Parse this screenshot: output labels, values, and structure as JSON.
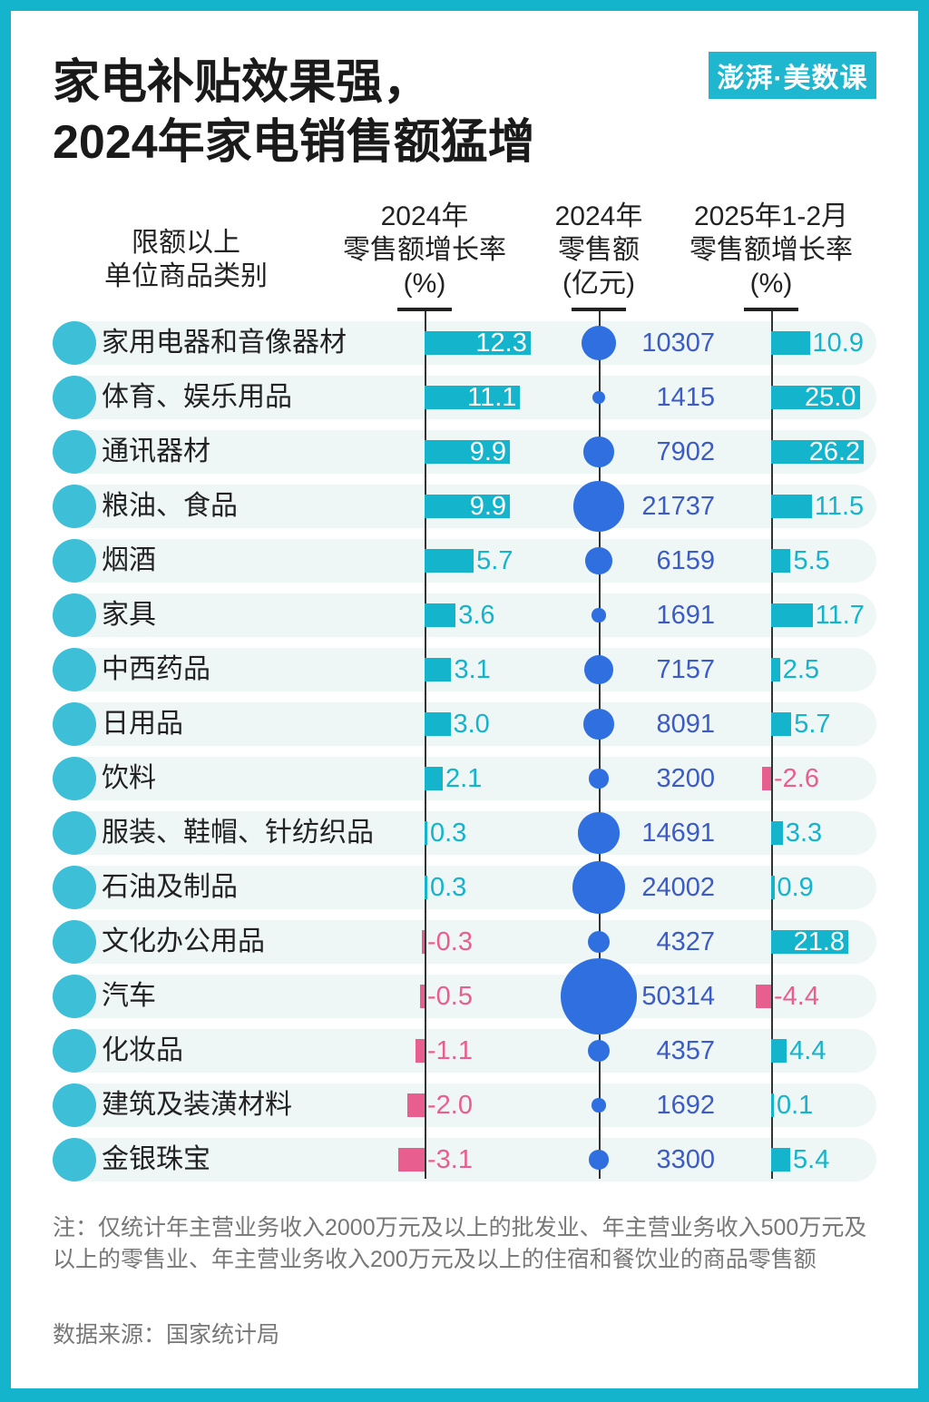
{
  "title_line1": "家电补贴效果强，",
  "title_line2": "2024年家电销售额猛增",
  "logo_text": "澎湃·美数课",
  "colors": {
    "frame": "#14b4cc",
    "positive": "#14b4cc",
    "negative": "#e85f8f",
    "bubble": "#2f6fe0",
    "amount_text": "#3b5bc8"
  },
  "chart_data": {
    "type": "table",
    "columns": [
      {
        "label_lines": [
          "限额以上",
          "单位商品类别"
        ]
      },
      {
        "label_lines": [
          "2024年",
          "零售额增长率",
          "(%)"
        ],
        "type": "bar"
      },
      {
        "label_lines": [
          "2024年",
          "零售额",
          "(亿元)"
        ],
        "type": "bubble"
      },
      {
        "label_lines": [
          "2025年1-2月",
          "零售额增长率",
          "(%)"
        ],
        "type": "bar"
      }
    ],
    "rows": [
      {
        "category": "家用电器和音像器材",
        "growth_2024": 12.3,
        "sales_2024": 10307,
        "growth_2025_jan_feb": 10.9
      },
      {
        "category": "体育、娱乐用品",
        "growth_2024": 11.1,
        "sales_2024": 1415,
        "growth_2025_jan_feb": 25.0
      },
      {
        "category": "通讯器材",
        "growth_2024": 9.9,
        "sales_2024": 7902,
        "growth_2025_jan_feb": 26.2
      },
      {
        "category": "粮油、食品",
        "growth_2024": 9.9,
        "sales_2024": 21737,
        "growth_2025_jan_feb": 11.5
      },
      {
        "category": "烟酒",
        "growth_2024": 5.7,
        "sales_2024": 6159,
        "growth_2025_jan_feb": 5.5
      },
      {
        "category": "家具",
        "growth_2024": 3.6,
        "sales_2024": 1691,
        "growth_2025_jan_feb": 11.7
      },
      {
        "category": "中西药品",
        "growth_2024": 3.1,
        "sales_2024": 7157,
        "growth_2025_jan_feb": 2.5
      },
      {
        "category": "日用品",
        "growth_2024": 3.0,
        "sales_2024": 8091,
        "growth_2025_jan_feb": 5.7
      },
      {
        "category": "饮料",
        "growth_2024": 2.1,
        "sales_2024": 3200,
        "growth_2025_jan_feb": -2.6
      },
      {
        "category": "服装、鞋帽、针纺织品",
        "growth_2024": 0.3,
        "sales_2024": 14691,
        "growth_2025_jan_feb": 3.3
      },
      {
        "category": "石油及制品",
        "growth_2024": 0.3,
        "sales_2024": 24002,
        "growth_2025_jan_feb": 0.9
      },
      {
        "category": "文化办公用品",
        "growth_2024": -0.3,
        "sales_2024": 4327,
        "growth_2025_jan_feb": 21.8
      },
      {
        "category": "汽车",
        "growth_2024": -0.5,
        "sales_2024": 50314,
        "growth_2025_jan_feb": -4.4
      },
      {
        "category": "化妆品",
        "growth_2024": -1.1,
        "sales_2024": 4357,
        "growth_2025_jan_feb": 4.4
      },
      {
        "category": "建筑及装潢材料",
        "growth_2024": -2.0,
        "sales_2024": 1692,
        "growth_2025_jan_feb": 0.1
      },
      {
        "category": "金银珠宝",
        "growth_2024": -3.1,
        "sales_2024": 3300,
        "growth_2025_jan_feb": 5.4
      }
    ]
  },
  "note": "注：仅统计年主营业务收入2000万元及以上的批发业、年主营业务收入500万元及以上的零售业、年主营业务收入200万元及以上的住宿和餐饮业的商品零售额",
  "source": "数据来源：国家统计局"
}
